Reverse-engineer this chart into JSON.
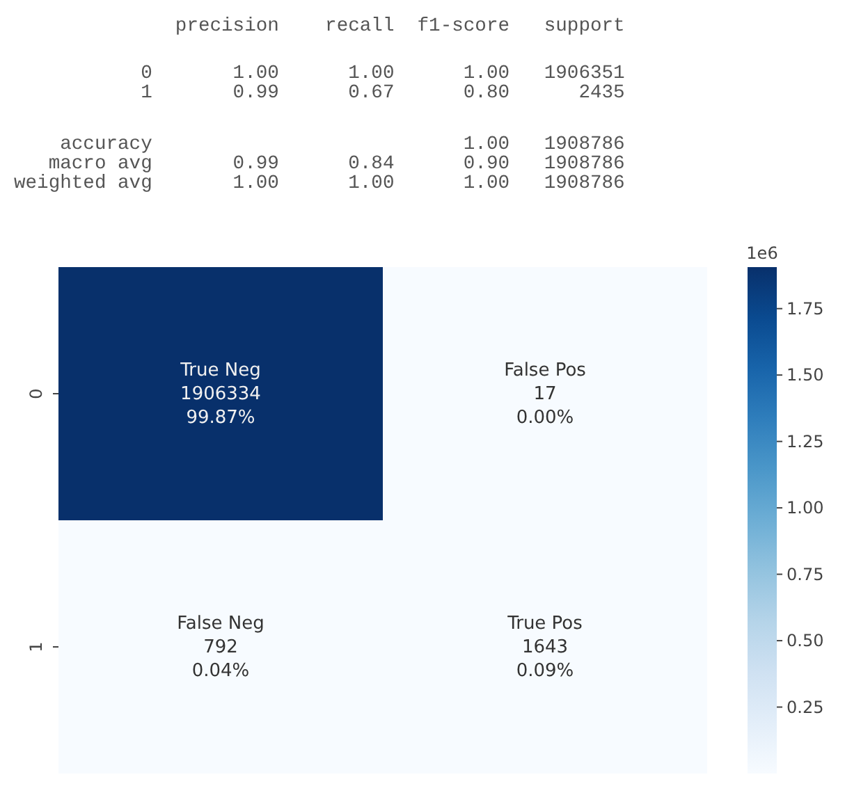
{
  "chart_data": [
    {
      "type": "other",
      "annotations": [
        "              precision    recall  f1-score   support",
        "           0       1.00      1.00      1.00   1906351",
        "           1       0.99      0.67      0.80      2435",
        "    accuracy                           1.00   1908786",
        "   macro avg       0.99      0.84      0.90   1908786",
        "weighted avg       1.00      1.00      1.00   1908786"
      ]
    },
    {
      "type": "heatmap",
      "categories": [
        null,
        null
      ],
      "y_categories": [
        "0",
        "1"
      ],
      "cells": [
        [
          1.906334,
          1.7e-05
        ],
        [
          0.000792,
          0.001643
        ]
      ],
      "cell_labels": [
        [
          "True Neg\n1906334\n99.87%",
          "False Pos\n17\n0.00%"
        ],
        [
          "False Neg\n792\n0.04%",
          "True Pos\n1643\n0.09%"
        ]
      ],
      "clim": [
        1.7e-05,
        1.906334
      ],
      "clabel": "1e6",
      "cticks": [
        {
          "value": 0.25,
          "label": "0.25"
        },
        {
          "value": 0.5,
          "label": "0.50"
        },
        {
          "value": 0.75,
          "label": "0.75"
        },
        {
          "value": 1,
          "label": "1.00"
        },
        {
          "value": 1.25,
          "label": "1.25"
        },
        {
          "value": 1.5,
          "label": "1.50"
        },
        {
          "value": 1.75,
          "label": "1.75"
        }
      ]
    }
  ]
}
